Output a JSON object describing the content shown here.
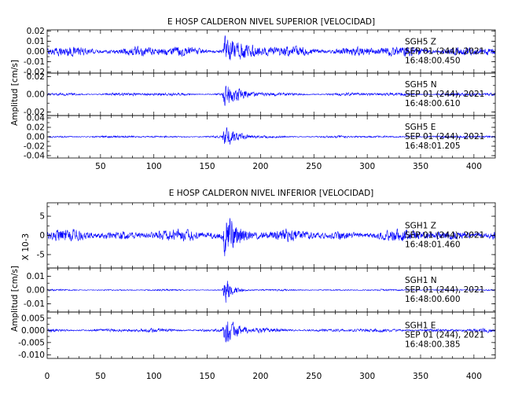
{
  "chart_data": [
    {
      "type": "line",
      "title": "E HOSP CALDERON NIVEL SUPERIOR [VELOCIDAD]",
      "ylabel": "Amplitud [cm/s]",
      "xlim": [
        0,
        420
      ],
      "x_ticks": [
        50,
        100,
        150,
        200,
        250,
        300,
        350,
        400
      ],
      "series": [
        {
          "station": "SGH5",
          "component": "Z",
          "date": "SEP 01 (244), 2021",
          "time": "16:48:00.450",
          "ylim": [
            -0.021,
            0.021
          ],
          "y_ticks": [
            0.02,
            0.01,
            0.0,
            -0.01,
            -0.02
          ],
          "y_tick_labels": [
            "0.02",
            "0.01",
            "0.00",
            "-0.01",
            "-0.02"
          ],
          "duration": 420,
          "samples": 1600,
          "noise": 0.006,
          "event_onset": 167,
          "event_peak": 0.019,
          "event_decay": 12
        },
        {
          "station": "SGH5",
          "component": "N",
          "date": "SEP 01 (244), 2021",
          "time": "16:48:00.610",
          "ylim": [
            -0.024,
            0.024
          ],
          "y_ticks": [
            0.02,
            0.0,
            -0.02
          ],
          "y_tick_labels": [
            "0.02",
            "0.00",
            "-0.02"
          ],
          "duration": 420,
          "samples": 1600,
          "noise": 0.0022,
          "event_onset": 167,
          "event_peak": 0.02,
          "event_decay": 11
        },
        {
          "station": "SGH5",
          "component": "E",
          "date": "SEP 01 (244), 2021",
          "time": "16:48:01.205",
          "ylim": [
            -0.045,
            0.045
          ],
          "y_ticks": [
            0.04,
            0.02,
            0.0,
            -0.02,
            -0.04
          ],
          "y_tick_labels": [
            "0.04",
            "0.02",
            "0.00",
            "-0.02",
            "-0.04"
          ],
          "duration": 420,
          "samples": 1600,
          "noise": 0.003,
          "event_onset": 167,
          "event_peak": 0.028,
          "event_decay": 11
        }
      ],
      "x_tick_labels": [
        "50",
        "100",
        "150",
        "200",
        "250",
        "300",
        "350",
        "400"
      ]
    },
    {
      "type": "line",
      "title": "E HOSP CALDERON NIVEL INFERIOR [VELOCIDAD]",
      "ylabel": "Amplitud [cm/s]",
      "scale_label": "X 10-3",
      "xlim": [
        0,
        420
      ],
      "x_ticks": [
        0,
        50,
        100,
        150,
        200,
        250,
        300,
        350,
        400
      ],
      "series": [
        {
          "station": "SGH1",
          "component": "Z",
          "date": "SEP 01 (244), 2021",
          "time": "16:48:01.460",
          "ylim": [
            -8.5,
            8.5
          ],
          "y_ticks": [
            5,
            0,
            -5
          ],
          "y_tick_labels": [
            "5",
            "0",
            "-5"
          ],
          "duration": 420,
          "samples": 1600,
          "noise": 1.8,
          "event_onset": 167,
          "event_peak": 8,
          "event_decay": 9
        },
        {
          "station": "SGH1",
          "component": "N",
          "date": "SEP 01 (244), 2021",
          "time": "16:48:00.600",
          "ylim": [
            -0.016,
            0.016
          ],
          "y_ticks": [
            0.01,
            0.0,
            -0.01
          ],
          "y_tick_labels": [
            "0.01",
            "0.00",
            "-0.01"
          ],
          "duration": 420,
          "samples": 1600,
          "noise": 0.0007,
          "event_onset": 167,
          "event_peak": 0.013,
          "event_decay": 6
        },
        {
          "station": "SGH1",
          "component": "E",
          "date": "SEP 01 (244), 2021",
          "time": "16:48:00.385",
          "ylim": [
            -0.0115,
            0.0075
          ],
          "y_ticks": [
            0.005,
            0.0,
            -0.005,
            -0.01
          ],
          "y_tick_labels": [
            "0.005",
            "0.000",
            "-0.005",
            "-0.010"
          ],
          "duration": 420,
          "samples": 1600,
          "noise": 0.0009,
          "event_onset": 167,
          "event_peak": 0.0085,
          "event_decay": 9
        }
      ],
      "x_tick_labels": [
        "0",
        "50",
        "100",
        "150",
        "200",
        "250",
        "300",
        "350",
        "400"
      ]
    }
  ]
}
